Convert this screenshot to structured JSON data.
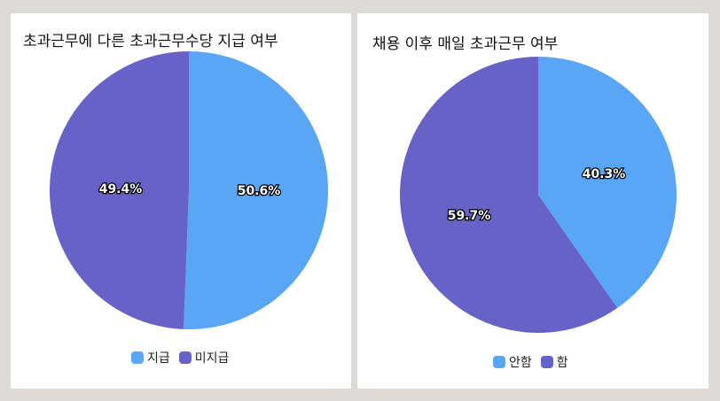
{
  "colors": {
    "blue": "#58a6f5",
    "purple": "#6762c8",
    "background": "#dcd9d6",
    "panel": "#ffffff"
  },
  "charts": [
    {
      "title": "초과근무에 다른 초과근무수당 지급 여부",
      "legend": [
        {
          "label": "지급",
          "color": "#58a6f5"
        },
        {
          "label": "미지급",
          "color": "#6762c8"
        }
      ],
      "labels": [
        "50.6%",
        "49.4%"
      ]
    },
    {
      "title": "채용 이후 매일 초과근무 여부",
      "legend": [
        {
          "label": "안함",
          "color": "#58a6f5"
        },
        {
          "label": "함",
          "color": "#6762c8"
        }
      ],
      "labels": [
        "40.3%",
        "59.7%"
      ]
    }
  ],
  "chart_data": [
    {
      "type": "pie",
      "title": "초과근무에 다른 초과근무수당 지급 여부",
      "categories": [
        "지급",
        "미지급"
      ],
      "values": [
        50.6,
        49.4
      ],
      "colors": [
        "#58a6f5",
        "#6762c8"
      ],
      "legend_position": "bottom"
    },
    {
      "type": "pie",
      "title": "채용 이후 매일 초과근무 여부",
      "categories": [
        "안함",
        "함"
      ],
      "values": [
        40.3,
        59.7
      ],
      "colors": [
        "#58a6f5",
        "#6762c8"
      ],
      "legend_position": "bottom"
    }
  ]
}
